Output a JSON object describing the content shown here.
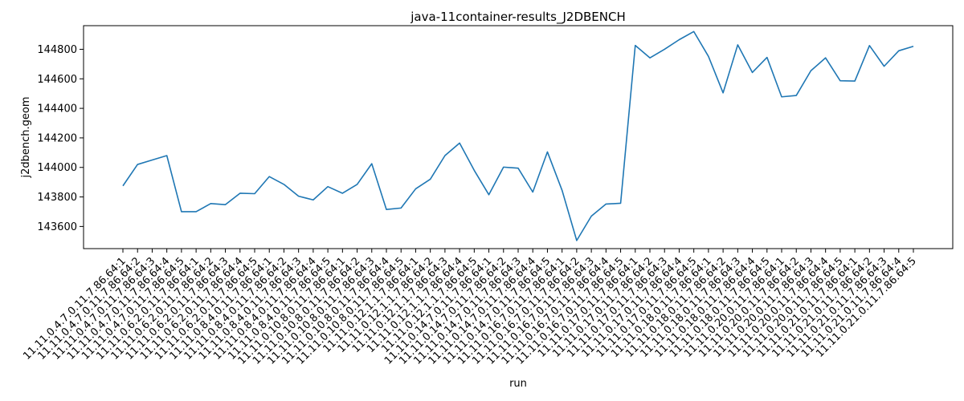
{
  "chart_data": {
    "type": "line",
    "title": "java-11container-results_J2DBENCH",
    "xlabel": "run",
    "ylabel": "j2dbench.geom",
    "ylim": [
      143450,
      144960
    ],
    "yticks": [
      143600,
      143800,
      144000,
      144200,
      144400,
      144600,
      144800
    ],
    "grid": false,
    "legend": "none",
    "color": "#1f77b4",
    "categories": [
      "11.11.0.4.7.0.11.7.86.64:1",
      "11.11.0.4.7.0.11.7.86.64:2",
      "11.11.0.4.7.0.11.7.86.64:3",
      "11.11.0.4.7.0.11.7.86.64:4",
      "11.11.0.4.7.0.11.7.86.64:5",
      "11.11.0.6.2.0.11.7.86.64:1",
      "11.11.0.6.2.0.11.7.86.64:2",
      "11.11.0.6.2.0.11.7.86.64:3",
      "11.11.0.6.2.0.11.7.86.64:4",
      "11.11.0.6.2.0.11.7.86.64:5",
      "11.11.0.8.4.0.11.7.86.64:1",
      "11.11.0.8.4.0.11.7.86.64:2",
      "11.11.0.8.4.0.11.7.86.64:3",
      "11.11.0.8.4.0.11.7.86.64:4",
      "11.11.0.8.4.0.11.7.86.64:5",
      "11.11.0.10.8.0.11.7.86.64:1",
      "11.11.0.10.8.0.11.7.86.64:2",
      "11.11.0.10.8.0.11.7.86.64:3",
      "11.11.0.10.8.0.11.7.86.64:4",
      "11.11.0.10.8.0.11.7.86.64:5",
      "11.11.0.12.1.1.7.86.64:1",
      "11.11.0.12.1.1.7.86.64:2",
      "11.11.0.12.1.1.7.86.64:3",
      "11.11.0.12.1.1.7.86.64:4",
      "11.11.0.12.1.1.7.86.64:5",
      "11.11.0.14.7.0.11.7.86.64:1",
      "11.11.0.14.7.0.11.7.86.64:2",
      "11.11.0.14.7.0.11.7.86.64:3",
      "11.11.0.14.7.0.11.7.86.64:4",
      "11.11.0.14.7.0.11.7.86.64:5",
      "11.11.0.16.7.0.11.7.86.64:1",
      "11.11.0.16.7.0.11.7.86.64:2",
      "11.11.0.16.7.0.11.7.86.64:3",
      "11.11.0.16.7.0.11.7.86.64:4",
      "11.11.0.16.7.0.11.7.86.64:5",
      "11.11.0.17.0.11.7.86.64:1",
      "11.11.0.17.0.11.7.86.64:2",
      "11.11.0.17.0.11.7.86.64:3",
      "11.11.0.17.0.11.7.86.64:4",
      "11.11.0.17.0.11.7.86.64:5",
      "11.11.0.18.0.11.7.86.64:1",
      "11.11.0.18.0.11.7.86.64:2",
      "11.11.0.18.0.11.7.86.64:3",
      "11.11.0.18.0.11.7.86.64:4",
      "11.11.0.18.0.11.7.86.64:5",
      "11.11.0.20.0.11.7.86.64:1",
      "11.11.0.20.0.11.7.86.64:2",
      "11.11.0.20.0.11.7.86.64:3",
      "11.11.0.20.0.11.7.86.64:4",
      "11.11.0.20.0.11.7.86.64:5",
      "11.11.0.21.0.11.7.86.64:1",
      "11.11.0.21.0.11.7.86.64:2",
      "11.11.0.21.0.11.7.86.64:3",
      "11.11.0.21.0.11.7.86.64:4",
      "11.11.0.21.0.11.7.86.64:5"
    ],
    "values": [
      143875,
      144020,
      144050,
      144080,
      143700,
      143700,
      143755,
      143748,
      143825,
      143822,
      143938,
      143885,
      143805,
      143780,
      143870,
      143825,
      143885,
      144025,
      143715,
      143725,
      143855,
      143920,
      144080,
      144165,
      143980,
      143815,
      144002,
      143995,
      143833,
      144105,
      143845,
      143505,
      143670,
      143752,
      143757,
      144826,
      144742,
      144800,
      144865,
      144920,
      144752,
      144505,
      144830,
      144643,
      144745,
      144478,
      144487,
      144655,
      144742,
      144587,
      144585,
      144825,
      144685,
      144790,
      144820
    ]
  }
}
